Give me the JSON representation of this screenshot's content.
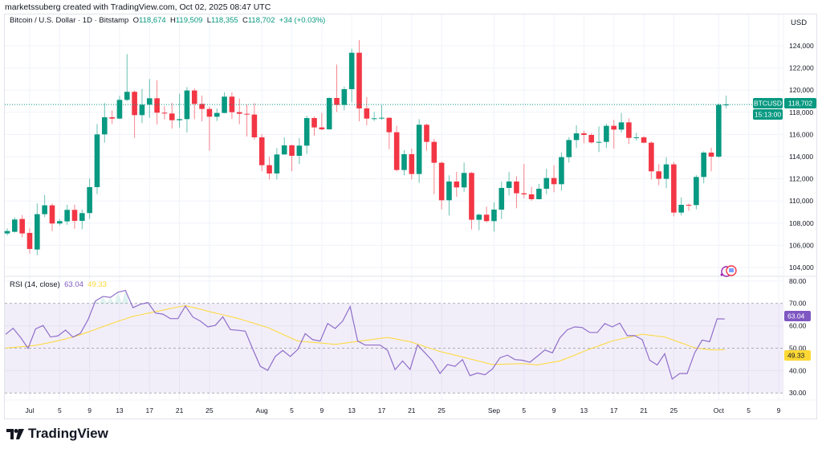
{
  "credit": "marketssuberg created with TradingView.com, Oct 02, 2025 08:47 UTC",
  "legend": {
    "symbol": "Bitcoin / U.S. Dollar · 1D · Bitstamp",
    "o_label": "O",
    "o": "118,674",
    "h_label": "H",
    "h": "119,509",
    "l_label": "L",
    "l": "118,355",
    "c_label": "C",
    "c": "118,702",
    "change": "+34 (+0.03%)"
  },
  "currency": "USD",
  "last_price": {
    "ticker": "BTCUSD",
    "price": "118,702",
    "countdown": "15:13:00"
  },
  "rsi_legend": {
    "title": "RSI (14, close)",
    "rsi": "63.04",
    "ma": "49.33"
  },
  "logo_text": "TradingView",
  "colors": {
    "up": "#089981",
    "down": "#f23645",
    "rsi": "#7e57c2",
    "rsi_ma": "#fdd835",
    "grid": "#f0f3fa"
  },
  "chart_data": {
    "type": "candlestick",
    "price_axis": {
      "ticks": [
        104000,
        106000,
        108000,
        110000,
        112000,
        114000,
        116000,
        118000,
        120000,
        122000,
        124000
      ],
      "tick_labels": [
        "104,000",
        "106,000",
        "108,000",
        "110,000",
        "112,000",
        "114,000",
        "116,000",
        "118,000",
        "120,000",
        "122,000",
        "124,000"
      ],
      "range": [
        103276,
        126826
      ]
    },
    "x_ticks": [
      {
        "date": "2025-07-01",
        "label": "Jul"
      },
      {
        "date": "2025-07-05",
        "label": "5"
      },
      {
        "date": "2025-07-09",
        "label": "9"
      },
      {
        "date": "2025-07-13",
        "label": "13"
      },
      {
        "date": "2025-07-17",
        "label": "17"
      },
      {
        "date": "2025-07-21",
        "label": "21"
      },
      {
        "date": "2025-07-25",
        "label": "25"
      },
      {
        "date": "2025-08-01",
        "label": "Aug"
      },
      {
        "date": "2025-08-05",
        "label": "5"
      },
      {
        "date": "2025-08-09",
        "label": "9"
      },
      {
        "date": "2025-08-13",
        "label": "13"
      },
      {
        "date": "2025-08-17",
        "label": "17"
      },
      {
        "date": "2025-08-21",
        "label": "21"
      },
      {
        "date": "2025-08-25",
        "label": "25"
      },
      {
        "date": "2025-09-01",
        "label": "Sep"
      },
      {
        "date": "2025-09-05",
        "label": "5"
      },
      {
        "date": "2025-09-09",
        "label": "9"
      },
      {
        "date": "2025-09-13",
        "label": "13"
      },
      {
        "date": "2025-09-17",
        "label": "17"
      },
      {
        "date": "2025-09-21",
        "label": "21"
      },
      {
        "date": "2025-09-25",
        "label": "25"
      },
      {
        "date": "2025-10-01",
        "label": "Oct"
      },
      {
        "date": "2025-10-05",
        "label": "5"
      },
      {
        "date": "2025-10-09",
        "label": "9"
      }
    ],
    "start_date": "2025-06-28",
    "ohlc": [
      [
        107072,
        107530,
        106878,
        107289
      ],
      [
        107216,
        108520,
        107168,
        108327
      ],
      [
        108375,
        108737,
        106709,
        107072
      ],
      [
        107120,
        107530,
        105260,
        105670
      ],
      [
        105622,
        109776,
        105115,
        108810
      ],
      [
        108810,
        110549,
        108568,
        109607
      ],
      [
        109607,
        109776,
        107289,
        107965
      ],
      [
        107965,
        108375,
        107796,
        108182
      ],
      [
        108158,
        109655,
        107844,
        109197
      ],
      [
        109197,
        109655,
        107481,
        108206
      ],
      [
        108206,
        109221,
        107458,
        108906
      ],
      [
        108906,
        112022,
        108375,
        111249
      ],
      [
        111249,
        116948,
        110621,
        116007
      ],
      [
        116007,
        118832,
        115258,
        117552
      ],
      [
        117552,
        118180,
        116948,
        117432
      ],
      [
        117432,
        119484,
        117384,
        119122
      ],
      [
        119122,
        123252,
        119001,
        119847
      ],
      [
        119847,
        119967,
        115693,
        117746
      ],
      [
        117746,
        120112,
        117021,
        118687
      ],
      [
        118687,
        121006,
        117504,
        119267
      ],
      [
        119267,
        120885,
        116900,
        117963
      ],
      [
        117963,
        118542,
        117359,
        117890
      ],
      [
        117890,
        118856,
        116538,
        117287
      ],
      [
        117287,
        119677,
        116586,
        117384
      ],
      [
        117384,
        120281,
        116176,
        119967
      ],
      [
        119967,
        120160,
        117384,
        118760
      ],
      [
        118760,
        119508,
        117190,
        118301
      ],
      [
        118301,
        118518,
        114533,
        117600
      ],
      [
        117600,
        118349,
        117214,
        117939
      ],
      [
        117939,
        119798,
        117915,
        119412
      ],
      [
        119412,
        119798,
        117407,
        118011
      ],
      [
        118011,
        119243,
        116924,
        117866
      ],
      [
        117866,
        118712,
        115813,
        117794
      ],
      [
        117794,
        118832,
        115524,
        115741
      ],
      [
        115741,
        116031,
        112674,
        113229
      ],
      [
        113229,
        113978,
        111949,
        112481
      ],
      [
        112481,
        114775,
        111949,
        114195
      ],
      [
        114195,
        115741,
        114171,
        115017
      ],
      [
        115017,
        115089,
        112674,
        114075
      ],
      [
        114075,
        115669,
        113326,
        114992
      ],
      [
        114992,
        117697,
        114244,
        117480
      ],
      [
        117480,
        117625,
        115886,
        116635
      ],
      [
        116635,
        117939,
        116369,
        116466
      ],
      [
        116466,
        119340,
        116417,
        119291
      ],
      [
        119291,
        122310,
        118035,
        118663
      ],
      [
        118663,
        120330,
        118180,
        120088
      ],
      [
        120088,
        123735,
        118905,
        123372
      ],
      [
        123372,
        124508,
        117190,
        118349
      ],
      [
        118349,
        119364,
        116828,
        117432
      ],
      [
        117432,
        118035,
        117214,
        117456
      ],
      [
        117456,
        118663,
        117311,
        117504
      ],
      [
        117504,
        117552,
        114678,
        116200
      ],
      [
        116200,
        116780,
        112674,
        112795
      ],
      [
        112795,
        114582,
        112312,
        114220
      ],
      [
        114220,
        114727,
        111949,
        112433
      ],
      [
        112433,
        117384,
        111636,
        116876
      ],
      [
        116876,
        116973,
        114534,
        115330
      ],
      [
        115330,
        115596,
        110621,
        113447
      ],
      [
        113447,
        113544,
        109245,
        110066
      ],
      [
        110066,
        112312,
        108690,
        111756
      ],
      [
        111756,
        112626,
        110380,
        111225
      ],
      [
        111225,
        113471,
        110815,
        112529
      ],
      [
        112529,
        112626,
        107434,
        108303
      ],
      [
        108303,
        108859,
        107361,
        108762
      ],
      [
        108762,
        109487,
        108086,
        108182
      ],
      [
        108182,
        109873,
        107240,
        109221
      ],
      [
        109221,
        111756,
        108376,
        111177
      ],
      [
        111177,
        112626,
        110500,
        111756
      ],
      [
        111756,
        112238,
        109340,
        110694
      ],
      [
        110694,
        113349,
        110258,
        110596
      ],
      [
        110596,
        111272,
        110016,
        110161
      ],
      [
        110161,
        111538,
        110137,
        111103
      ],
      [
        111103,
        112915,
        110620,
        112069
      ],
      [
        112069,
        113204,
        110789,
        111514
      ],
      [
        111514,
        114364,
        110934,
        113953
      ],
      [
        113953,
        115764,
        113470,
        115498
      ],
      [
        115498,
        116827,
        114774,
        116102
      ],
      [
        116102,
        116344,
        115209,
        115957
      ],
      [
        115957,
        116126,
        115185,
        115281
      ],
      [
        115281,
        116730,
        114412,
        115329
      ],
      [
        115329,
        116972,
        114774,
        116779
      ],
      [
        116779,
        117310,
        114726,
        116440
      ],
      [
        116440,
        117938,
        116175,
        117092
      ],
      [
        117092,
        117455,
        115136,
        115691
      ],
      [
        115691,
        116151,
        115450,
        115740
      ],
      [
        115740,
        115860,
        115209,
        115257
      ],
      [
        115257,
        115378,
        111948,
        112673
      ],
      [
        112673,
        113325,
        111417,
        111997
      ],
      [
        111997,
        113953,
        111151,
        113301
      ],
      [
        113301,
        113518,
        108616,
        108954
      ],
      [
        108954,
        110330,
        108688,
        109654
      ],
      [
        109654,
        109775,
        109123,
        109630
      ],
      [
        109630,
        112335,
        109244,
        112166
      ],
      [
        112166,
        114484,
        111586,
        114364
      ],
      [
        114364,
        114798,
        112673,
        114001
      ],
      [
        114001,
        118800,
        113900,
        118674
      ],
      [
        118674,
        119509,
        118355,
        118702
      ]
    ],
    "last_close": 118702,
    "rsi": {
      "axis_ticks": [
        30,
        40,
        50,
        60,
        70,
        80
      ],
      "axis_labels": [
        "30.00",
        "40.00",
        "50.00",
        "60.00",
        "70.00",
        "80.00"
      ],
      "range": [
        29,
        82.1
      ],
      "bands": {
        "upper": 70,
        "middle": 50,
        "lower": 30
      },
      "values": [
        56.2,
        58.9,
        54.8,
        49.9,
        58.6,
        60.1,
        55.0,
        55.5,
        58.1,
        54.9,
        56.7,
        62.7,
        71.1,
        73.1,
        72.7,
        75.0,
        75.8,
        68.1,
        69.6,
        70.4,
        65.7,
        65.2,
        63.2,
        63.2,
        68.8,
        63.9,
        62.1,
        59.5,
        60.2,
        64.0,
        58.3,
        58.0,
        57.6,
        49.6,
        41.9,
        40.1,
        46.3,
        49.0,
        46.3,
        49.4,
        56.5,
        53.8,
        53.2,
        61.0,
        58.8,
        62.1,
        68.6,
        53.2,
        51.4,
        51.4,
        51.4,
        49.0,
        40.4,
        44.3,
        40.5,
        51.4,
        47.9,
        44.3,
        38.7,
        42.7,
        41.9,
        44.9,
        37.7,
        38.9,
        38.1,
        40.7,
        45.7,
        46.9,
        44.9,
        44.6,
        43.7,
        46.4,
        49.2,
        47.9,
        54.6,
        58.2,
        59.5,
        59.2,
        57.0,
        57.0,
        61.0,
        59.5,
        61.2,
        55.6,
        55.6,
        53.8,
        44.6,
        42.5,
        47.5,
        36.2,
        38.7,
        38.7,
        47.9,
        53.6,
        52.9,
        63.1,
        63.04
      ],
      "ma_values": [
        50.0,
        50.3,
        50.6,
        50.9,
        51.3,
        51.9,
        52.6,
        53.3,
        54.1,
        55.0,
        56.0,
        57.2,
        58.4,
        59.6,
        60.8,
        62.0,
        63.1,
        64.2,
        64.9,
        65.6,
        66.3,
        67.0,
        67.7,
        68.4,
        69.0,
        68.2,
        67.4,
        66.5,
        65.7,
        64.9,
        64.1,
        63.3,
        62.3,
        61.3,
        60.2,
        59.2,
        57.7,
        56.2,
        54.7,
        53.2,
        52.9,
        52.6,
        52.3,
        52.0,
        51.7,
        52.1,
        52.6,
        53.0,
        53.5,
        53.9,
        54.4,
        54.8,
        54.2,
        53.5,
        52.9,
        51.8,
        50.7,
        49.6,
        48.5,
        47.7,
        46.9,
        46.1,
        45.2,
        44.4,
        43.5,
        42.7,
        42.8,
        42.9,
        43.0,
        43.1,
        42.8,
        42.5,
        43.1,
        43.7,
        44.3,
        45.6,
        46.9,
        48.3,
        49.6,
        50.8,
        52.0,
        53.2,
        54.0,
        54.7,
        55.5,
        56.2,
        55.8,
        55.4,
        55.0,
        53.8,
        52.6,
        51.4,
        50.2,
        49.7,
        49.3,
        49.2,
        49.33
      ]
    }
  }
}
